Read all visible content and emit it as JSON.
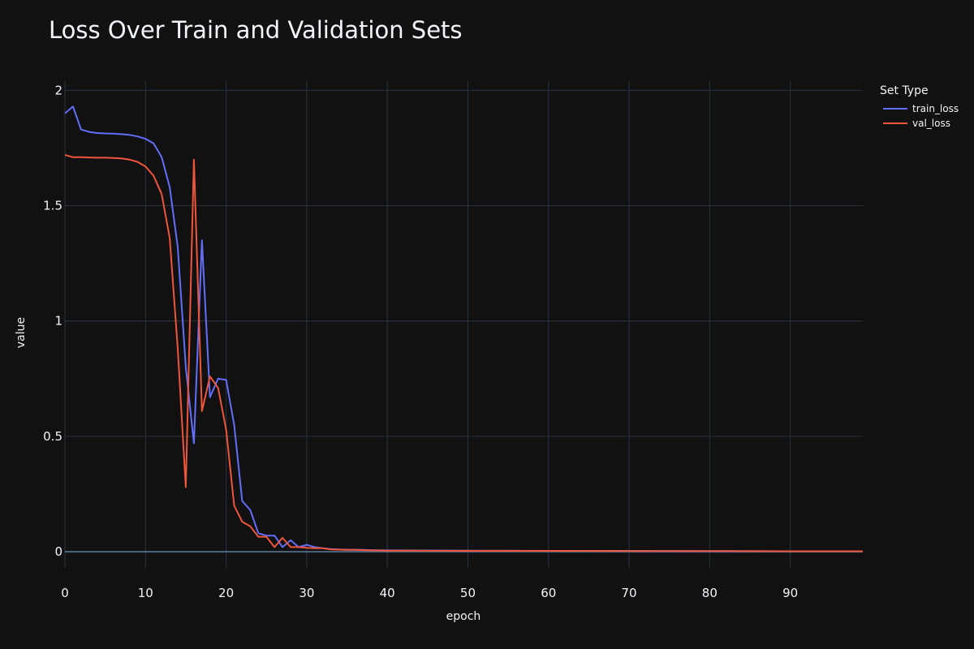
{
  "chart_data": {
    "type": "line",
    "title": "Loss Over Train and Validation Sets",
    "xlabel": "epoch",
    "ylabel": "value",
    "xlim": [
      0,
      99
    ],
    "ylim": [
      -0.07,
      2.04
    ],
    "x_ticks": [
      0,
      10,
      20,
      30,
      40,
      50,
      60,
      70,
      80,
      90
    ],
    "y_ticks": [
      0,
      0.5,
      1,
      1.5,
      2
    ],
    "y_tick_labels": [
      "0",
      "0.5",
      "1",
      "1.5",
      "2"
    ],
    "grid": true,
    "legend": {
      "title": "Set Type",
      "placement": "top-right, outside plot"
    },
    "series": [
      {
        "name": "train_loss",
        "color": "#636efa",
        "x": [
          0,
          1,
          2,
          3,
          4,
          5,
          6,
          7,
          8,
          9,
          10,
          11,
          12,
          13,
          14,
          15,
          16,
          17,
          18,
          19,
          20,
          21,
          22,
          23,
          24,
          25,
          26,
          27,
          28,
          29,
          30,
          31,
          32,
          33,
          34,
          35,
          36,
          37,
          38,
          40,
          50,
          60,
          70,
          80,
          90,
          99
        ],
        "y": [
          1.9,
          1.93,
          1.83,
          1.82,
          1.815,
          1.813,
          1.812,
          1.81,
          1.807,
          1.8,
          1.79,
          1.77,
          1.71,
          1.58,
          1.32,
          0.8,
          0.47,
          1.35,
          0.67,
          0.75,
          0.745,
          0.55,
          0.22,
          0.18,
          0.08,
          0.07,
          0.07,
          0.02,
          0.05,
          0.02,
          0.03,
          0.02,
          0.015,
          0.012,
          0.01,
          0.009,
          0.008,
          0.008,
          0.007,
          0.006,
          0.005,
          0.004,
          0.004,
          0.003,
          0.002,
          0.002
        ]
      },
      {
        "name": "val_loss",
        "color": "#ef553b",
        "x": [
          0,
          1,
          2,
          3,
          4,
          5,
          6,
          7,
          8,
          9,
          10,
          11,
          12,
          13,
          14,
          15,
          16,
          17,
          18,
          19,
          20,
          21,
          22,
          23,
          24,
          25,
          26,
          27,
          28,
          29,
          30,
          31,
          32,
          33,
          34,
          35,
          36,
          37,
          38,
          40,
          50,
          60,
          70,
          80,
          90,
          99
        ],
        "y": [
          1.72,
          1.71,
          1.71,
          1.709,
          1.708,
          1.708,
          1.707,
          1.705,
          1.7,
          1.69,
          1.67,
          1.63,
          1.55,
          1.36,
          0.88,
          0.28,
          1.7,
          0.61,
          0.76,
          0.71,
          0.53,
          0.2,
          0.13,
          0.11,
          0.065,
          0.065,
          0.02,
          0.06,
          0.02,
          0.02,
          0.017,
          0.015,
          0.015,
          0.01,
          0.009,
          0.008,
          0.008,
          0.007,
          0.006,
          0.005,
          0.004,
          0.004,
          0.003,
          0.003,
          0.002,
          0.002
        ]
      }
    ]
  }
}
